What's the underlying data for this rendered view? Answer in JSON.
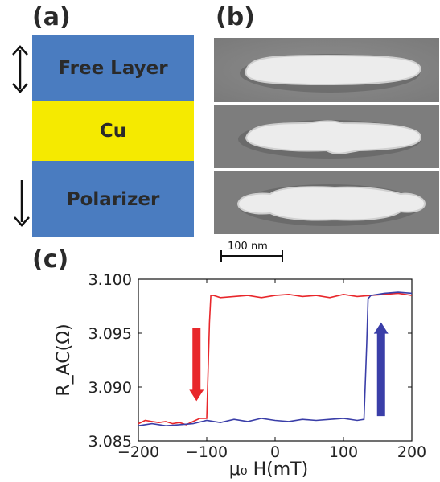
{
  "figure": {
    "panel_a": {
      "label": "(a)",
      "layers": [
        {
          "name": "Free Layer",
          "color": "#4a7cc0",
          "arrow": "double"
        },
        {
          "name": "Cu",
          "color": "#f5ea00",
          "arrow": "none"
        },
        {
          "name": "Polarizer",
          "color": "#4a7cc0",
          "arrow": "down"
        }
      ]
    },
    "panel_b": {
      "label": "(b)",
      "image_count": 3,
      "scale_bar_label": "100 nm"
    },
    "panel_c": {
      "label": "(c)"
    }
  },
  "chart_data": {
    "type": "line",
    "xlabel": "μ₀ H(mT)",
    "ylabel": "R_AC(Ω)",
    "xlim": [
      -200,
      200
    ],
    "ylim": [
      3.085,
      3.1
    ],
    "xticks": [
      -200,
      -100,
      0,
      100,
      200
    ],
    "yticks": [
      "3.085",
      "3.090",
      "3.095",
      "3.100"
    ],
    "grid": false,
    "series": [
      {
        "color": "#e8272b",
        "x": [
          -200,
          -190,
          -180,
          -170,
          -160,
          -150,
          -140,
          -130,
          -120,
          -110,
          -100,
          -96,
          -94,
          -90,
          -80,
          -60,
          -40,
          -20,
          0,
          20,
          40,
          60,
          80,
          100,
          120,
          140,
          160,
          180,
          200
        ],
        "y": [
          3.0866,
          3.0869,
          3.0868,
          3.0867,
          3.0868,
          3.0866,
          3.0867,
          3.0865,
          3.0868,
          3.0871,
          3.0871,
          3.096,
          3.0985,
          3.0985,
          3.0983,
          3.0984,
          3.0985,
          3.0983,
          3.0985,
          3.0986,
          3.0984,
          3.0985,
          3.0983,
          3.0986,
          3.0984,
          3.0985,
          3.0986,
          3.0987,
          3.0985
        ]
      },
      {
        "color": "#3a3ea8",
        "x": [
          -200,
          -180,
          -160,
          -140,
          -120,
          -100,
          -80,
          -60,
          -40,
          -20,
          0,
          20,
          40,
          60,
          80,
          100,
          120,
          130,
          134,
          136,
          140,
          160,
          180,
          200
        ],
        "y": [
          3.0864,
          3.0866,
          3.0864,
          3.0865,
          3.0866,
          3.0869,
          3.0867,
          3.087,
          3.0868,
          3.0871,
          3.0869,
          3.0868,
          3.087,
          3.0869,
          3.087,
          3.0871,
          3.0869,
          3.087,
          3.094,
          3.0982,
          3.0985,
          3.0987,
          3.0988,
          3.0987
        ]
      }
    ],
    "annotations": [
      {
        "type": "arrow",
        "direction": "down",
        "color": "#e8272b",
        "x": -115,
        "y_from": 3.0955,
        "y_to": 3.0887
      },
      {
        "type": "arrow",
        "direction": "up",
        "color": "#3a3ea8",
        "x": 155,
        "y_from": 3.0873,
        "y_to": 3.096
      }
    ]
  }
}
